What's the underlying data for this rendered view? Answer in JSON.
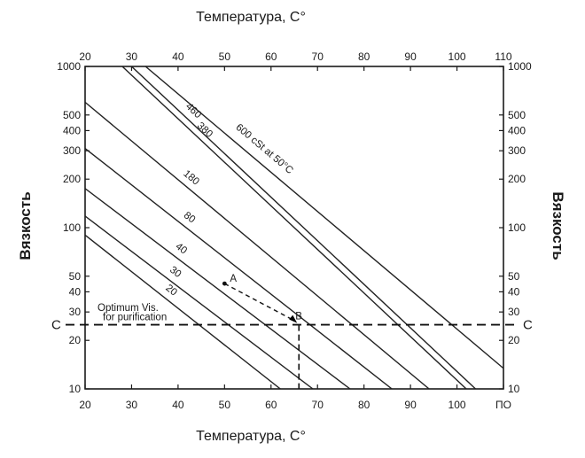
{
  "chart_data": {
    "type": "line",
    "title_top": "Температура, С°",
    "title_bottom": "Температура, С°",
    "ylabel": "Вязкость",
    "xlim": [
      20,
      110
    ],
    "ylim": [
      10,
      1000
    ],
    "y_scale": "log",
    "x_ticks_top": [
      "20",
      "30",
      "40",
      "50",
      "60",
      "70",
      "80",
      "90",
      "100",
      "110"
    ],
    "x_ticks_bottom": [
      "20",
      "30",
      "40",
      "50",
      "60",
      "70",
      "80",
      "90",
      "100",
      "ПО"
    ],
    "y_ticks": [
      {
        "value": 1000,
        "label": "1000"
      },
      {
        "value": 500,
        "label": "500"
      },
      {
        "value": 400,
        "label": "400"
      },
      {
        "value": 300,
        "label": "300"
      },
      {
        "value": 200,
        "label": "200"
      },
      {
        "value": 100,
        "label": "100"
      },
      {
        "value": 50,
        "label": "50"
      },
      {
        "value": 40,
        "label": "40"
      },
      {
        "value": 30,
        "label": "30"
      },
      {
        "value": 20,
        "label": "20"
      },
      {
        "value": 10,
        "label": "10"
      }
    ],
    "series": [
      {
        "name": "600 cSt at 50°C",
        "x": [
          33,
          112
        ],
        "y": [
          1000,
          12
        ]
      },
      {
        "name": "460",
        "x": [
          30,
          104
        ],
        "y": [
          1000,
          10
        ]
      },
      {
        "name": "380",
        "x": [
          28,
          102
        ],
        "y": [
          1000,
          10
        ]
      },
      {
        "name": "180",
        "x": [
          20,
          94
        ],
        "y": [
          600,
          10
        ]
      },
      {
        "name": "80",
        "x": [
          20,
          86
        ],
        "y": [
          310,
          10
        ]
      },
      {
        "name": "40",
        "x": [
          20,
          77
        ],
        "y": [
          175,
          10
        ]
      },
      {
        "name": "30",
        "x": [
          20,
          69
        ],
        "y": [
          118,
          10
        ]
      },
      {
        "name": "20",
        "x": [
          20,
          62
        ],
        "y": [
          90,
          10
        ]
      }
    ],
    "reference_line": {
      "label": "C",
      "y": 25
    },
    "optimum_label": [
      "Optimum Vis.",
      "for purification"
    ],
    "points": [
      {
        "label": "A",
        "x": 50,
        "y": 45
      },
      {
        "label": "B",
        "x": 66,
        "y": 25
      }
    ],
    "grid": false
  }
}
